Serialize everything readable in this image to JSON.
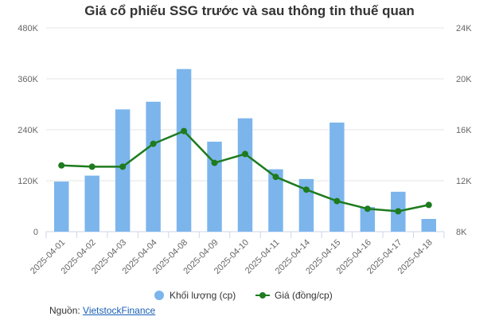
{
  "chart_data": {
    "type": "bar+line",
    "title": "Giá cổ phiếu SSG trước và sau thông tin thuế quan",
    "categories": [
      "2025-04-01",
      "2025-04-02",
      "2025-04-03",
      "2025-04-04",
      "2025-04-08",
      "2025-04-09",
      "2025-04-10",
      "2025-04-11",
      "2025-04-14",
      "2025-04-15",
      "2025-04-16",
      "2025-04-17",
      "2025-04-18"
    ],
    "series": [
      {
        "name": "Khối lượng (cp)",
        "type": "bar",
        "axis": "left",
        "color": "#7cb5ec",
        "values": [
          118000,
          132000,
          288000,
          306000,
          383000,
          212000,
          267000,
          147000,
          124000,
          257000,
          58000,
          94000,
          30000
        ]
      },
      {
        "name": "Giá (đồng/cp)",
        "type": "line",
        "axis": "right",
        "color": "#1e7b1e",
        "values": [
          13200,
          13100,
          13100,
          14900,
          15900,
          13400,
          14100,
          12300,
          11300,
          10400,
          9800,
          9600,
          10100
        ]
      }
    ],
    "y_left": {
      "min": 0,
      "max": 480000,
      "ticks": [
        0,
        120000,
        240000,
        360000,
        480000
      ],
      "tick_labels": [
        "0",
        "120K",
        "240K",
        "360K",
        "480K"
      ]
    },
    "y_right": {
      "min": 8000,
      "max": 24000,
      "ticks": [
        8000,
        12000,
        16000,
        20000,
        24000
      ],
      "tick_labels": [
        "8K",
        "12K",
        "16K",
        "20K",
        "24K"
      ]
    },
    "grid": true,
    "legend_position": "bottom"
  },
  "source": {
    "label": "Nguồn: ",
    "link_text": "VietstockFinance"
  }
}
